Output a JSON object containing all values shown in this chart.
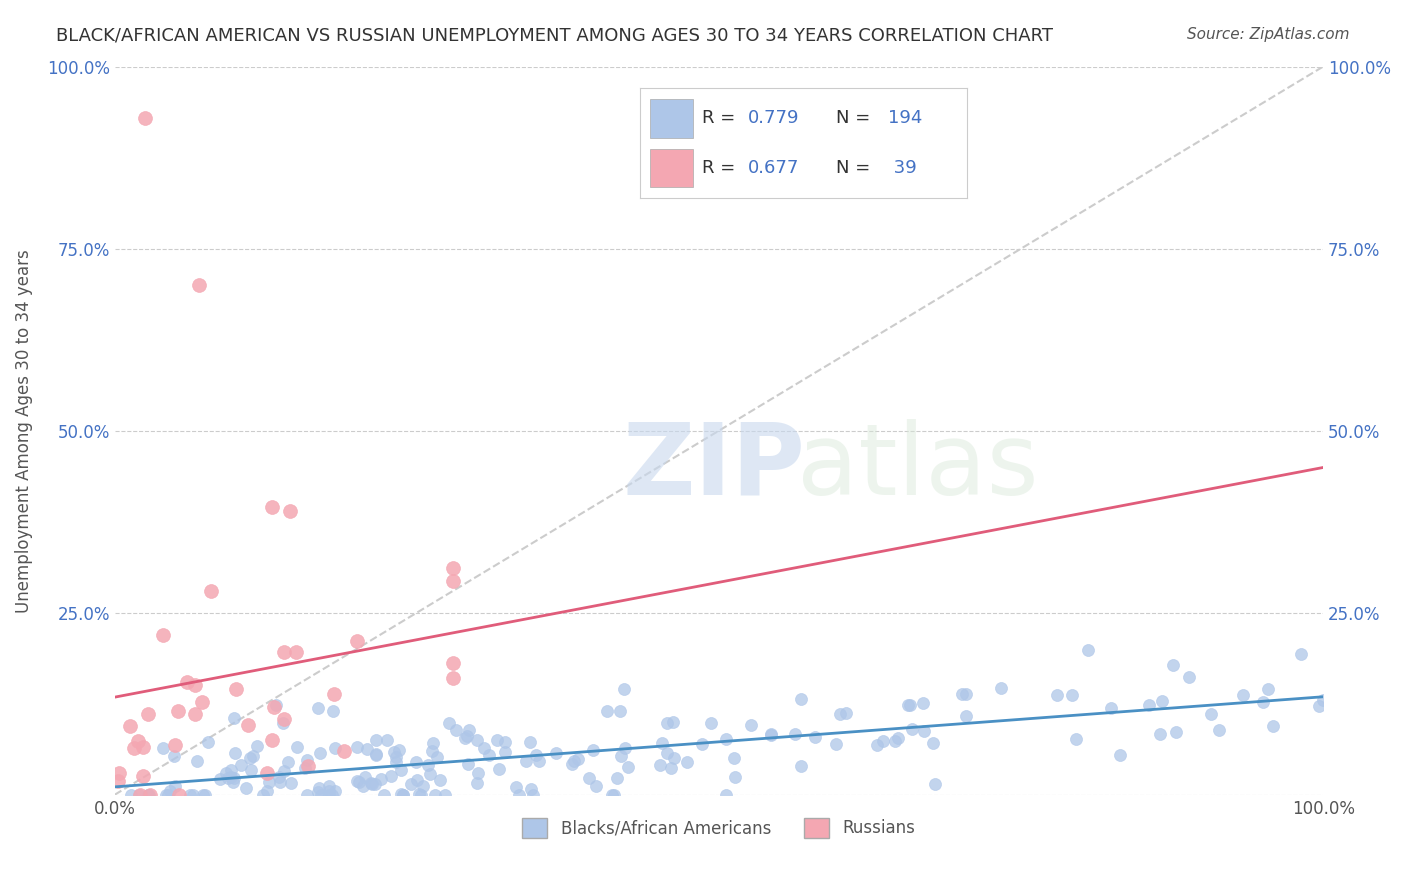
{
  "title": "BLACK/AFRICAN AMERICAN VS RUSSIAN UNEMPLOYMENT AMONG AGES 30 TO 34 YEARS CORRELATION CHART",
  "source": "Source: ZipAtlas.com",
  "ylabel": "Unemployment Among Ages 30 to 34 years",
  "xlim": [
    0.0,
    1.0
  ],
  "ylim": [
    0.0,
    1.0
  ],
  "xticks": [
    0.0,
    0.25,
    0.5,
    0.75,
    1.0
  ],
  "xticklabels": [
    "0.0%",
    "",
    "",
    "",
    "100.0%"
  ],
  "yticks": [
    0.0,
    0.25,
    0.5,
    0.75,
    1.0
  ],
  "yticklabels": [
    "",
    "25.0%",
    "50.0%",
    "75.0%",
    "100.0%"
  ],
  "blue_R": 0.779,
  "blue_N": 194,
  "pink_R": 0.677,
  "pink_N": 39,
  "blue_color": "#aec6e8",
  "pink_color": "#f4a7b2",
  "blue_line_color": "#4a90c4",
  "pink_line_color": "#e05c7a",
  "diagonal_color": "#cccccc",
  "grid_color": "#cccccc",
  "title_color": "#333333",
  "label_color": "#555555",
  "legend_N_color": "#4472c4",
  "watermark_zip": "ZIP",
  "watermark_atlas": "atlas",
  "background_color": "#ffffff",
  "seed": 42
}
